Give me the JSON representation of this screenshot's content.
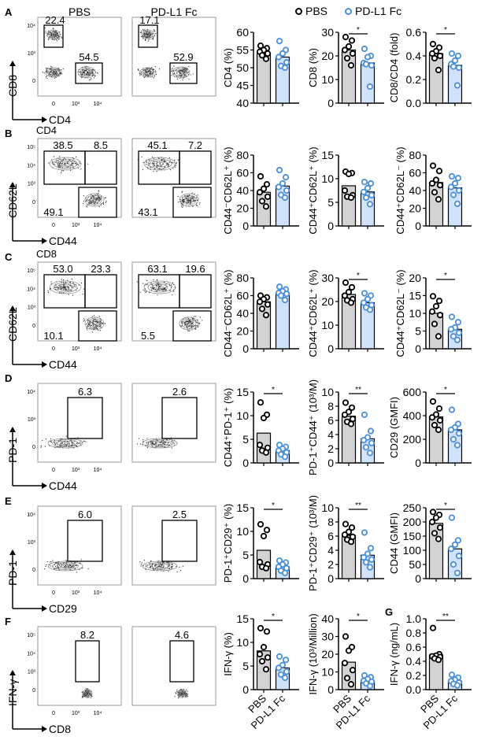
{
  "colors": {
    "pbs_dot": "#000000",
    "pd_dot": "#4a90d9",
    "pbs_bar": "#d3d3d3",
    "pd_bar": "#cfe2fa",
    "gate": "#000000",
    "frame": "#999999"
  },
  "legend": {
    "items": [
      {
        "label": "PBS",
        "color": "#000000"
      },
      {
        "label": "PD-L1 Fc",
        "color": "#4a90d9"
      }
    ]
  },
  "flow_headers": {
    "left": "PBS",
    "right": "PD-L1 Fc"
  },
  "panels": [
    {
      "letter": "A",
      "subtitle": "",
      "y_axis": "CD8",
      "x_axis": "CD4",
      "yticks": [
        "10⁴",
        "10³",
        "0"
      ],
      "xticks": [
        "0",
        "10³",
        "10⁴"
      ],
      "gates_pbs": [
        "22.4",
        "54.5"
      ],
      "gates_pd": [
        "17.1",
        "52.9"
      ]
    },
    {
      "letter": "B",
      "subtitle": "CD4",
      "y_axis": "CD62L",
      "x_axis": "CD44",
      "yticks": [
        "10⁵",
        "10⁴",
        "10³",
        "0"
      ],
      "xticks": [
        "0",
        "10³",
        "10⁴"
      ],
      "gates_pbs": [
        "38.5",
        "8.5",
        "49.1"
      ],
      "gates_pd": [
        "45.1",
        "7.2",
        "43.1"
      ]
    },
    {
      "letter": "C",
      "subtitle": "CD8",
      "y_axis": "CD62L",
      "x_axis": "CD44",
      "yticks": [
        "10⁵",
        "10⁴",
        "10³",
        "0"
      ],
      "xticks": [
        "0",
        "10³",
        "10⁴"
      ],
      "gates_pbs": [
        "53.0",
        "23.3",
        "10.1"
      ],
      "gates_pd": [
        "63.1",
        "19.6",
        "5.5"
      ]
    },
    {
      "letter": "D",
      "subtitle": "",
      "y_axis": "PD-1",
      "x_axis": "CD44",
      "yticks": [
        "10⁴",
        "10³",
        "0"
      ],
      "xticks": [
        "0",
        "10³",
        "10⁴"
      ],
      "gates_pbs": [
        "6.3"
      ],
      "gates_pd": [
        "2.6"
      ]
    },
    {
      "letter": "E",
      "subtitle": "",
      "y_axis": "PD-1",
      "x_axis": "CD29",
      "yticks": [
        "10⁴",
        "10³",
        "0"
      ],
      "xticks": [
        "0",
        "10³",
        "10⁴"
      ],
      "gates_pbs": [
        "6.0"
      ],
      "gates_pd": [
        "2.5"
      ]
    },
    {
      "letter": "F",
      "subtitle": "",
      "y_axis": "IFN-γ",
      "x_axis": "CD8",
      "yticks": [
        "10⁵",
        "10⁴",
        "10³",
        "0"
      ],
      "xticks": [
        "0",
        "10³",
        "10⁴"
      ],
      "gates_pbs": [
        "8.2"
      ],
      "gates_pd": [
        "4.6"
      ]
    }
  ],
  "panel_g_letter": "G",
  "xcat_labels": [
    "PBS",
    "PD-L1 Fc"
  ],
  "chart_data": [
    {
      "type": "bar",
      "row": "A",
      "ylabel": "CD4 (%)",
      "ylim": [
        40,
        60
      ],
      "yticks": [
        40,
        45,
        50,
        55,
        60
      ],
      "sig": "",
      "categories": [
        "PBS",
        "PD-L1 Fc"
      ],
      "series": [
        {
          "name": "PBS",
          "mean": 54,
          "points": [
            56.2,
            55.5,
            55,
            54.5,
            54,
            53.5,
            52.5
          ]
        },
        {
          "name": "PD-L1 Fc",
          "mean": 53,
          "points": [
            57.5,
            55,
            54,
            53,
            51.5,
            50.5,
            50
          ]
        }
      ]
    },
    {
      "type": "bar",
      "row": "A",
      "ylabel": "CD8 (%)",
      "ylim": [
        0,
        30
      ],
      "yticks": [
        0,
        10,
        20,
        30
      ],
      "sig": "*",
      "categories": [
        "PBS",
        "PD-L1 Fc"
      ],
      "series": [
        {
          "name": "PBS",
          "mean": 22.5,
          "points": [
            28,
            26.5,
            24,
            22.5,
            21,
            19,
            16
          ]
        },
        {
          "name": "PD-L1 Fc",
          "mean": 17,
          "points": [
            23,
            20,
            19.5,
            17,
            16,
            16.5,
            7
          ]
        }
      ]
    },
    {
      "type": "bar",
      "row": "A",
      "ylabel": "CD8/CD4 (fold)",
      "ylim": [
        0,
        0.6
      ],
      "yticks": [
        "0.0",
        "0.2",
        "0.4",
        "0.6"
      ],
      "sig": "*",
      "categories": [
        "PBS",
        "PD-L1 Fc"
      ],
      "series": [
        {
          "name": "PBS",
          "mean": 0.42,
          "points": [
            0.5,
            0.47,
            0.44,
            0.42,
            0.4,
            0.38,
            0.28
          ]
        },
        {
          "name": "PD-L1 Fc",
          "mean": 0.32,
          "points": [
            0.42,
            0.4,
            0.36,
            0.33,
            0.3,
            0.31,
            0.15
          ]
        }
      ]
    },
    {
      "type": "bar",
      "row": "B",
      "ylabel": "CD44⁻CD62L⁺ (%)",
      "ylim": [
        0,
        80
      ],
      "yticks": [
        0,
        20,
        40,
        60,
        80
      ],
      "sig": "",
      "categories": [
        "PBS",
        "PD-L1 Fc"
      ],
      "series": [
        {
          "name": "PBS",
          "mean": 38,
          "points": [
            56,
            47,
            42,
            38,
            33,
            28,
            22
          ]
        },
        {
          "name": "PD-L1 Fc",
          "mean": 45,
          "points": [
            63,
            55,
            48,
            44,
            40,
            35,
            32
          ]
        }
      ]
    },
    {
      "type": "bar",
      "row": "B",
      "ylabel": "CD44⁺CD62L⁺ (%)",
      "ylim": [
        0,
        15
      ],
      "yticks": [
        0,
        5,
        10,
        15
      ],
      "sig": "",
      "categories": [
        "PBS",
        "PD-L1 Fc"
      ],
      "series": [
        {
          "name": "PBS",
          "mean": 8.5,
          "points": [
            11.5,
            11.2,
            11,
            7.5,
            6.5,
            6.2,
            6
          ]
        },
        {
          "name": "PD-L1 Fc",
          "mean": 7.2,
          "points": [
            9.3,
            9,
            8,
            7.2,
            6.5,
            6,
            4.6
          ]
        }
      ]
    },
    {
      "type": "bar",
      "row": "B",
      "ylabel": "CD44⁺CD62L⁻ (%)",
      "ylim": [
        0,
        80
      ],
      "yticks": [
        0,
        20,
        40,
        60,
        80
      ],
      "sig": "",
      "categories": [
        "PBS",
        "PD-L1 Fc"
      ],
      "series": [
        {
          "name": "PBS",
          "mean": 49,
          "points": [
            68,
            62,
            52,
            48,
            46,
            38,
            30
          ]
        },
        {
          "name": "PD-L1 Fc",
          "mean": 43,
          "points": [
            56,
            54,
            48,
            44,
            40,
            35,
            25
          ]
        }
      ]
    },
    {
      "type": "bar",
      "row": "C",
      "ylabel": "CD44⁻CD62L⁺ (%)",
      "ylim": [
        0,
        80
      ],
      "yticks": [
        0,
        20,
        40,
        60,
        80
      ],
      "sig": "",
      "categories": [
        "PBS",
        "PD-L1 Fc"
      ],
      "series": [
        {
          "name": "PBS",
          "mean": 53,
          "points": [
            60,
            58,
            56,
            53,
            50,
            45,
            38
          ]
        },
        {
          "name": "PD-L1 Fc",
          "mean": 63,
          "points": [
            70,
            67,
            65,
            63,
            62,
            60,
            55
          ]
        }
      ]
    },
    {
      "type": "bar",
      "row": "C",
      "ylabel": "CD44⁺CD62L⁺ (%)",
      "ylim": [
        0,
        30
      ],
      "yticks": [
        0,
        10,
        20,
        30
      ],
      "sig": "*",
      "categories": [
        "PBS",
        "PD-L1 Fc"
      ],
      "series": [
        {
          "name": "PBS",
          "mean": 23,
          "points": [
            28,
            26,
            24,
            22.5,
            21,
            20.5,
            19.5
          ]
        },
        {
          "name": "PD-L1 Fc",
          "mean": 19.5,
          "points": [
            23.5,
            22.5,
            21,
            19.5,
            18.5,
            17.5,
            16.5
          ]
        }
      ]
    },
    {
      "type": "bar",
      "row": "C",
      "ylabel": "CD44⁺CD62L⁻ (%)",
      "ylim": [
        0,
        20
      ],
      "yticks": [
        0,
        5,
        10,
        15,
        20
      ],
      "sig": "*",
      "categories": [
        "PBS",
        "PD-L1 Fc"
      ],
      "series": [
        {
          "name": "PBS",
          "mean": 10,
          "points": [
            14.8,
            13.5,
            12,
            10.5,
            9.5,
            7,
            3.5
          ]
        },
        {
          "name": "PD-L1 Fc",
          "mean": 5.5,
          "points": [
            9,
            7.5,
            6,
            5.5,
            4.5,
            3.5,
            2.5
          ]
        }
      ]
    },
    {
      "type": "bar",
      "row": "D",
      "ylabel": "CD44⁺PD-1⁺ (%)",
      "ylim": [
        0,
        15
      ],
      "yticks": [
        0,
        5,
        10,
        15
      ],
      "sig": "*",
      "categories": [
        "PBS",
        "PD-L1 Fc"
      ],
      "series": [
        {
          "name": "PBS",
          "mean": 6.3,
          "points": [
            12.8,
            10.2,
            9.5,
            3.8,
            3.2,
            2.6,
            2.2
          ]
        },
        {
          "name": "PD-L1 Fc",
          "mean": 2.6,
          "points": [
            3.8,
            3.4,
            3,
            2.6,
            2.2,
            1.8,
            1.3
          ]
        }
      ]
    },
    {
      "type": "bar",
      "row": "D",
      "ylabel": "PD-1⁺CD44⁺ (10³/M)",
      "ylim": [
        0,
        10
      ],
      "yticks": [
        0,
        2,
        4,
        6,
        8,
        10
      ],
      "sig": "**",
      "categories": [
        "PBS",
        "PD-L1 Fc"
      ],
      "series": [
        {
          "name": "PBS",
          "mean": 6.6,
          "points": [
            8.5,
            7.8,
            7.2,
            6.8,
            6.2,
            5.8,
            5.5
          ]
        },
        {
          "name": "PD-L1 Fc",
          "mean": 3.4,
          "points": [
            6.8,
            4.5,
            3.6,
            3.2,
            2.8,
            2.2,
            1.4
          ]
        }
      ]
    },
    {
      "type": "bar",
      "row": "D",
      "ylabel": "CD29 (GMFI)",
      "ylim": [
        0,
        600
      ],
      "yticks": [
        0,
        200,
        400,
        600
      ],
      "sig": "*",
      "categories": [
        "PBS",
        "PD-L1 Fc"
      ],
      "series": [
        {
          "name": "PBS",
          "mean": 390,
          "points": [
            520,
            460,
            410,
            385,
            360,
            320,
            280
          ]
        },
        {
          "name": "PD-L1 Fc",
          "mean": 280,
          "points": [
            450,
            330,
            300,
            280,
            250,
            200,
            150
          ]
        }
      ]
    },
    {
      "type": "bar",
      "row": "E",
      "ylabel": "PD-1⁺CD29⁺ (%)",
      "ylim": [
        0,
        15
      ],
      "yticks": [
        0,
        5,
        10,
        15
      ],
      "sig": "*",
      "categories": [
        "PBS",
        "PD-L1 Fc"
      ],
      "series": [
        {
          "name": "PBS",
          "mean": 6,
          "points": [
            11.5,
            10.3,
            9,
            3.5,
            3,
            2.5,
            2.2
          ]
        },
        {
          "name": "PD-L1 Fc",
          "mean": 2.5,
          "points": [
            3.8,
            3.4,
            3,
            2.5,
            2.2,
            1.7,
            1.2
          ]
        }
      ]
    },
    {
      "type": "bar",
      "row": "E",
      "ylabel": "PD-1⁺CD29⁺ (10³/M)",
      "ylim": [
        0,
        10
      ],
      "yticks": [
        0,
        2,
        4,
        6,
        8,
        10
      ],
      "sig": "**",
      "categories": [
        "PBS",
        "PD-L1 Fc"
      ],
      "series": [
        {
          "name": "PBS",
          "mean": 6.1,
          "points": [
            7.7,
            7.2,
            6.6,
            6.2,
            5.9,
            5.5,
            5.2
          ]
        },
        {
          "name": "PD-L1 Fc",
          "mean": 3.3,
          "points": [
            6.5,
            4.3,
            3.5,
            3,
            2.7,
            2.3,
            1.6
          ]
        }
      ]
    },
    {
      "type": "bar",
      "row": "E",
      "ylabel": "CD44 (GMFI)",
      "ylim": [
        0,
        250
      ],
      "yticks": [
        0,
        50,
        100,
        150,
        200,
        250
      ],
      "sig": "*",
      "categories": [
        "PBS",
        "PD-L1 Fc"
      ],
      "series": [
        {
          "name": "PBS",
          "mean": 195,
          "points": [
            235,
            225,
            215,
            200,
            180,
            160,
            140
          ]
        },
        {
          "name": "PD-L1 Fc",
          "mean": 105,
          "points": [
            215,
            135,
            120,
            105,
            80,
            50,
            20
          ]
        }
      ]
    },
    {
      "type": "bar",
      "row": "F",
      "ylabel": "IFN-γ (%)",
      "ylim": [
        0,
        15
      ],
      "yticks": [
        0,
        5,
        10,
        15
      ],
      "sig": "*",
      "categories": [
        "PBS",
        "PD-L1 Fc"
      ],
      "series": [
        {
          "name": "PBS",
          "mean": 8.2,
          "points": [
            13,
            12.3,
            9,
            7.5,
            6.8,
            6,
            4.3
          ]
        },
        {
          "name": "PD-L1 Fc",
          "mean": 4.6,
          "points": [
            7,
            6.3,
            5.2,
            4.6,
            3.8,
            3.2,
            2.5
          ]
        }
      ]
    },
    {
      "type": "bar",
      "row": "F",
      "ylabel": "IFN-γ (10³/Million)",
      "ylim": [
        0,
        40
      ],
      "yticks": [
        0,
        10,
        20,
        30,
        40
      ],
      "sig": "*",
      "categories": [
        "PBS",
        "PD-L1 Fc"
      ],
      "series": [
        {
          "name": "PBS",
          "mean": 15.5,
          "points": [
            30,
            24,
            22,
            15,
            11,
            6.5,
            3
          ]
        },
        {
          "name": "PD-L1 Fc",
          "mean": 5,
          "points": [
            8,
            7,
            6,
            5,
            4.5,
            3.5,
            2
          ]
        }
      ]
    },
    {
      "type": "bar",
      "row": "G",
      "ylabel": "IFN-γ (ng/mL)",
      "ylim": [
        0,
        1.0
      ],
      "yticks": [
        "0.0",
        "0.2",
        "0.4",
        "0.6",
        "0.8",
        "1.0"
      ],
      "sig": "**",
      "categories": [
        "PBS",
        "PD-L1 Fc"
      ],
      "series": [
        {
          "name": "PBS",
          "mean": 0.49,
          "points": [
            0.87,
            0.5,
            0.48,
            0.47,
            0.46,
            0.44,
            0.42
          ]
        },
        {
          "name": "PD-L1 Fc",
          "mean": 0.12,
          "points": [
            0.21,
            0.17,
            0.14,
            0.12,
            0.1,
            0.08,
            0.06
          ]
        }
      ]
    }
  ]
}
